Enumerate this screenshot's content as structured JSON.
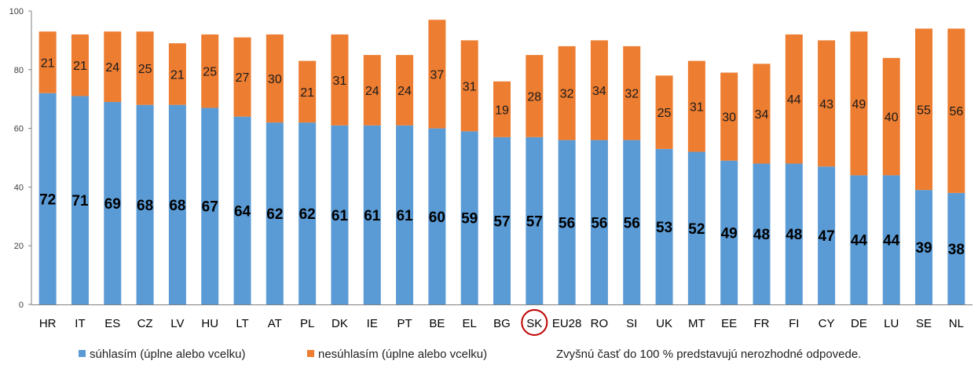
{
  "chart_data": {
    "type": "bar",
    "stacked": true,
    "categories": [
      "HR",
      "IT",
      "ES",
      "CZ",
      "LV",
      "HU",
      "LT",
      "AT",
      "PL",
      "DK",
      "IE",
      "PT",
      "BE",
      "EL",
      "BG",
      "SK",
      "EU28",
      "RO",
      "SI",
      "UK",
      "MT",
      "EE",
      "FR",
      "FI",
      "CY",
      "DE",
      "LU",
      "SE",
      "NL"
    ],
    "series": [
      {
        "name": "súhlasím (úplne alebo vcelku)",
        "color": "#5b9bd5",
        "values": [
          72,
          71,
          69,
          68,
          68,
          67,
          64,
          62,
          62,
          61,
          61,
          61,
          60,
          59,
          57,
          57,
          56,
          56,
          56,
          53,
          52,
          49,
          48,
          48,
          47,
          44,
          44,
          39,
          38
        ]
      },
      {
        "name": "nesúhlasím (úplne alebo vcelku)",
        "color": "#ed7d31",
        "values": [
          21,
          21,
          24,
          25,
          21,
          25,
          27,
          30,
          21,
          31,
          24,
          24,
          37,
          31,
          19,
          28,
          32,
          34,
          32,
          25,
          31,
          30,
          34,
          44,
          43,
          49,
          40,
          55,
          56
        ]
      }
    ],
    "ylim": [
      0,
      100
    ],
    "yticks": [
      "0",
      "20",
      "40",
      "60",
      "80",
      "100"
    ],
    "highlight_category": "SK",
    "highlight_color": "#c00000",
    "legend_position": "bottom",
    "note": "Zvyšnú časť do 100 % predstavujú nerozhodné odpovede."
  }
}
